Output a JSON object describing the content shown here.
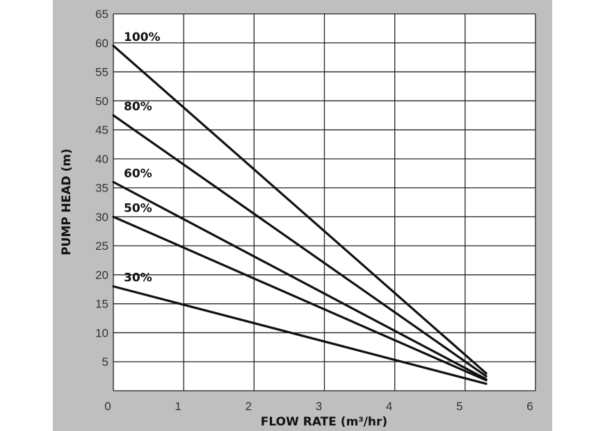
{
  "chart_data": {
    "type": "line",
    "xlabel": "FLOW RATE (m³/hr)",
    "ylabel": "PUMP HEAD (m)",
    "xlim": [
      0,
      6
    ],
    "ylim": [
      0,
      65
    ],
    "x_ticks": [
      "0",
      "1",
      "2",
      "3",
      "4",
      "5",
      "6"
    ],
    "y_ticks": [
      "5",
      "10",
      "15",
      "20",
      "25",
      "30",
      "35",
      "40",
      "45",
      "50",
      "55",
      "60",
      "65"
    ],
    "grid": true,
    "series": [
      {
        "name": "100%",
        "x": [
          0,
          5.3
        ],
        "y": [
          59.5,
          3.0
        ]
      },
      {
        "name": "80%",
        "x": [
          0,
          5.3
        ],
        "y": [
          47.5,
          2.5
        ]
      },
      {
        "name": "60%",
        "x": [
          0,
          5.3
        ],
        "y": [
          36.0,
          2.0
        ]
      },
      {
        "name": "50%",
        "x": [
          0,
          5.3
        ],
        "y": [
          30.0,
          1.8
        ]
      },
      {
        "name": "30%",
        "x": [
          0,
          5.3
        ],
        "y": [
          18.0,
          1.2
        ]
      }
    ],
    "colors": {
      "line": "#111111",
      "grid": "#222222",
      "plot_background": "#ffffff",
      "panel_background": "#bfbfbf"
    }
  }
}
